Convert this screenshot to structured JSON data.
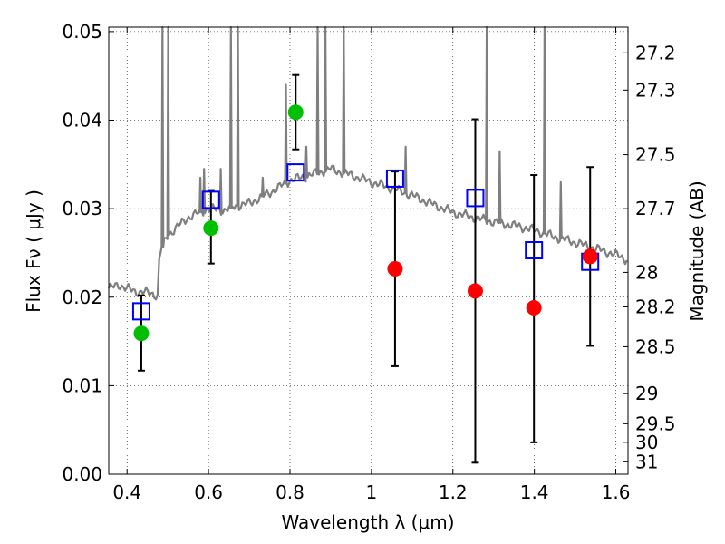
{
  "chart_data": {
    "type": "scatter",
    "xlabel": "Wavelength  λ (μm)",
    "ylabel": "Flux  Fν  ( μJy )",
    "ylabel_right": "Magnitude (AB)",
    "xlim": [
      0.355,
      1.63
    ],
    "ylim": [
      0.0,
      0.0505
    ],
    "grid": true,
    "x_ticks": [
      0.4,
      0.6,
      0.8,
      1.0,
      1.2,
      1.4,
      1.6
    ],
    "x_tick_labels": [
      "0.4",
      "0.6",
      "0.8",
      "1",
      "1.2",
      "1.4",
      "1.6"
    ],
    "y_ticks": [
      0.0,
      0.01,
      0.02,
      0.03,
      0.04,
      0.05
    ],
    "y_tick_labels": [
      "0.00",
      "0.01",
      "0.02",
      "0.03",
      "0.04",
      "0.05"
    ],
    "right_ticks": [
      {
        "label": "27.2",
        "flux": 0.0476
      },
      {
        "label": "27.3",
        "flux": 0.0434
      },
      {
        "label": "27.5",
        "flux": 0.0361
      },
      {
        "label": "27.7",
        "flux": 0.03
      },
      {
        "label": "28",
        "flux": 0.0228
      },
      {
        "label": "28.2",
        "flux": 0.0189
      },
      {
        "label": "28.5",
        "flux": 0.0144
      },
      {
        "label": "29",
        "flux": 0.0091
      },
      {
        "label": "29.5",
        "flux": 0.0057
      },
      {
        "label": "30",
        "flux": 0.0036
      },
      {
        "label": "31",
        "flux": 0.0014
      }
    ],
    "series": [
      {
        "kind": "model-spectrum",
        "color": "#7f7f7f",
        "continuum": [
          [
            0.355,
            0.021
          ],
          [
            0.37,
            0.0212
          ],
          [
            0.38,
            0.0214
          ],
          [
            0.4,
            0.021
          ],
          [
            0.42,
            0.0206
          ],
          [
            0.44,
            0.0206
          ],
          [
            0.46,
            0.0204
          ],
          [
            0.475,
            0.0202
          ],
          [
            0.48,
            0.025
          ],
          [
            0.5,
            0.027
          ],
          [
            0.52,
            0.0278
          ],
          [
            0.55,
            0.029
          ],
          [
            0.58,
            0.0296
          ],
          [
            0.6,
            0.03
          ],
          [
            0.64,
            0.0298
          ],
          [
            0.66,
            0.0302
          ],
          [
            0.7,
            0.0306
          ],
          [
            0.75,
            0.0318
          ],
          [
            0.78,
            0.0326
          ],
          [
            0.8,
            0.0332
          ],
          [
            0.85,
            0.0338
          ],
          [
            0.9,
            0.0345
          ],
          [
            0.92,
            0.0342
          ],
          [
            0.95,
            0.0338
          ],
          [
            1.0,
            0.033
          ],
          [
            1.05,
            0.0323
          ],
          [
            1.1,
            0.0315
          ],
          [
            1.15,
            0.0305
          ],
          [
            1.2,
            0.0296
          ],
          [
            1.25,
            0.029
          ],
          [
            1.3,
            0.0285
          ],
          [
            1.35,
            0.0281
          ],
          [
            1.4,
            0.0276
          ],
          [
            1.45,
            0.0268
          ],
          [
            1.5,
            0.0262
          ],
          [
            1.55,
            0.0255
          ],
          [
            1.6,
            0.0248
          ],
          [
            1.63,
            0.0242
          ]
        ],
        "emission_lines": [
          {
            "x": 0.487,
            "peak": 0.052
          },
          {
            "x": 0.501,
            "peak": 0.052
          },
          {
            "x": 0.58,
            "peak": 0.0335
          },
          {
            "x": 0.589,
            "peak": 0.0345
          },
          {
            "x": 0.63,
            "peak": 0.0345
          },
          {
            "x": 0.655,
            "peak": 0.052
          },
          {
            "x": 0.672,
            "peak": 0.052
          },
          {
            "x": 0.733,
            "peak": 0.0335
          },
          {
            "x": 0.79,
            "peak": 0.044
          },
          {
            "x": 0.84,
            "peak": 0.037
          },
          {
            "x": 0.868,
            "peak": 0.052
          },
          {
            "x": 0.887,
            "peak": 0.052
          },
          {
            "x": 0.932,
            "peak": 0.052
          },
          {
            "x": 1.084,
            "peak": 0.037
          },
          {
            "x": 1.283,
            "peak": 0.052
          },
          {
            "x": 1.315,
            "peak": 0.0365
          },
          {
            "x": 1.425,
            "peak": 0.052
          },
          {
            "x": 1.465,
            "peak": 0.033
          }
        ]
      },
      {
        "kind": "model-photometry",
        "marker": "open-square",
        "color": "#0000ff",
        "points": [
          {
            "x": 0.435,
            "y": 0.0184
          },
          {
            "x": 0.606,
            "y": 0.031
          },
          {
            "x": 0.814,
            "y": 0.0341
          },
          {
            "x": 1.058,
            "y": 0.0334
          },
          {
            "x": 1.255,
            "y": 0.0312
          },
          {
            "x": 1.399,
            "y": 0.0253
          },
          {
            "x": 1.537,
            "y": 0.024
          }
        ]
      },
      {
        "kind": "observed-photometry",
        "marker": "filled-circle",
        "color": "#00bf00",
        "points": [
          {
            "x": 0.435,
            "y": 0.0159,
            "err_low": 0.0042,
            "err_high": 0.0043
          },
          {
            "x": 0.606,
            "y": 0.0278,
            "err_low": 0.004,
            "err_high": 0.0042
          },
          {
            "x": 0.814,
            "y": 0.0409,
            "err_low": 0.0042,
            "err_high": 0.0042
          }
        ]
      },
      {
        "kind": "observed-photometry",
        "marker": "filled-circle",
        "color": "#ff0000",
        "points": [
          {
            "x": 1.058,
            "y": 0.0232,
            "err_low": 0.011,
            "err_high": 0.011
          },
          {
            "x": 1.255,
            "y": 0.0207,
            "err_low": 0.0194,
            "err_high": 0.0194
          },
          {
            "x": 1.399,
            "y": 0.0188,
            "err_low": 0.0152,
            "err_high": 0.015
          },
          {
            "x": 1.537,
            "y": 0.0246,
            "err_low": 0.0101,
            "err_high": 0.0101
          }
        ]
      }
    ]
  }
}
